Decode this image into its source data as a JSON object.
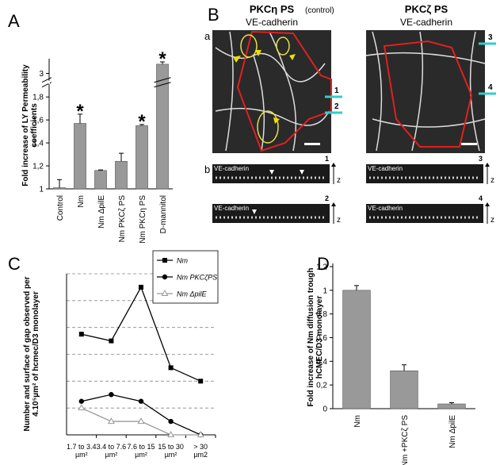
{
  "panels": {
    "a": "A",
    "b": "B",
    "c": "C",
    "d": "D"
  },
  "chart_data": [
    {
      "type": "bar",
      "ylabel": "Fold increase of LY Permeability coefficients",
      "categories": [
        "Control",
        "Nm",
        "Nm ΔpilE",
        "Nm PKCζ PS",
        "Nm PKCη PS",
        "D-mannitol"
      ],
      "values": [
        1.01,
        1.57,
        1.16,
        1.24,
        1.55,
        3.08
      ],
      "errors": [
        0.07,
        0.08,
        0.005,
        0.07,
        0.01,
        0.02
      ],
      "color": "#999999",
      "ylim": [
        1,
        3.1
      ],
      "axis_break": [
        1.9,
        2.95
      ],
      "yticks": [
        1,
        {
          "value": 1.2,
          "label": "1,2"
        },
        {
          "value": 1.4,
          "label": "1,4"
        },
        {
          "value": 1.6,
          "label": "1,6"
        },
        {
          "value": 1.8,
          "label": "1,8"
        },
        3
      ],
      "annotations": [
        {
          "text": "*",
          "category": "Nm"
        },
        {
          "text": "*",
          "category": "Nm PKCη PS"
        },
        {
          "text": "*",
          "category": "D-mannitol"
        }
      ]
    },
    {
      "type": "line",
      "ylabel": "Number and surface of gap observed per 4.10⁵µm² of hcmec/D3 monolayer",
      "categories": [
        "1.7 to 3.4 µm²",
        "3.4 to 7.6 µm²",
        "7.6 to 15 µm²",
        "15 to 30 µm²",
        "> 30 µm2"
      ],
      "series": [
        {
          "name": "Nm",
          "color": "#000000",
          "marker": "square",
          "values": [
            15,
            14,
            22,
            10,
            8
          ]
        },
        {
          "name": "Nm PKCζPS",
          "color": "#000000",
          "marker": "circle",
          "values": [
            5,
            6,
            5,
            2,
            0
          ]
        },
        {
          "name": "Nm ΔpilE",
          "color": "#999999",
          "marker": "triangle-open",
          "values": [
            4,
            2,
            2,
            0,
            0
          ]
        }
      ],
      "ylim": [
        0,
        24
      ],
      "ygrid": [
        4,
        8,
        12,
        16,
        20,
        24
      ],
      "grid": true
    },
    {
      "type": "bar",
      "ylabel": "Fold increase of Nm diffusion trough hCMEC/D3 monolayer",
      "categories": [
        "Nm",
        "Nm +PKCζ PS",
        "Nm ΔpilE"
      ],
      "values": [
        1.0,
        0.32,
        0.04
      ],
      "errors": [
        0.04,
        0.05,
        0.01
      ],
      "color": "#999999",
      "ylim": [
        0,
        1.2
      ],
      "yticks": [
        0,
        {
          "value": 0.2,
          "label": "0,2"
        },
        {
          "value": 0.4,
          "label": "0,4"
        },
        {
          "value": 0.6,
          "label": "0,6"
        },
        {
          "value": 0.8,
          "label": "0,8"
        },
        1,
        {
          "value": 1.2,
          "label": "1,2"
        }
      ]
    }
  ],
  "microscopy": {
    "left_title": "PKCη PS",
    "left_note": "(control)",
    "left_stain": "VE-cadherin",
    "right_title": "PKCζ PS",
    "right_stain": "VE-cadherin",
    "row_a": "a",
    "row_b": "b",
    "sections": [
      "1",
      "2",
      "3",
      "4"
    ],
    "strip_labels": [
      "VE-cadherin",
      "VE-cadherin",
      "VE-cadherin",
      "VE-cadherin"
    ],
    "axis_labels": [
      "z",
      "z",
      "z",
      "z"
    ]
  }
}
